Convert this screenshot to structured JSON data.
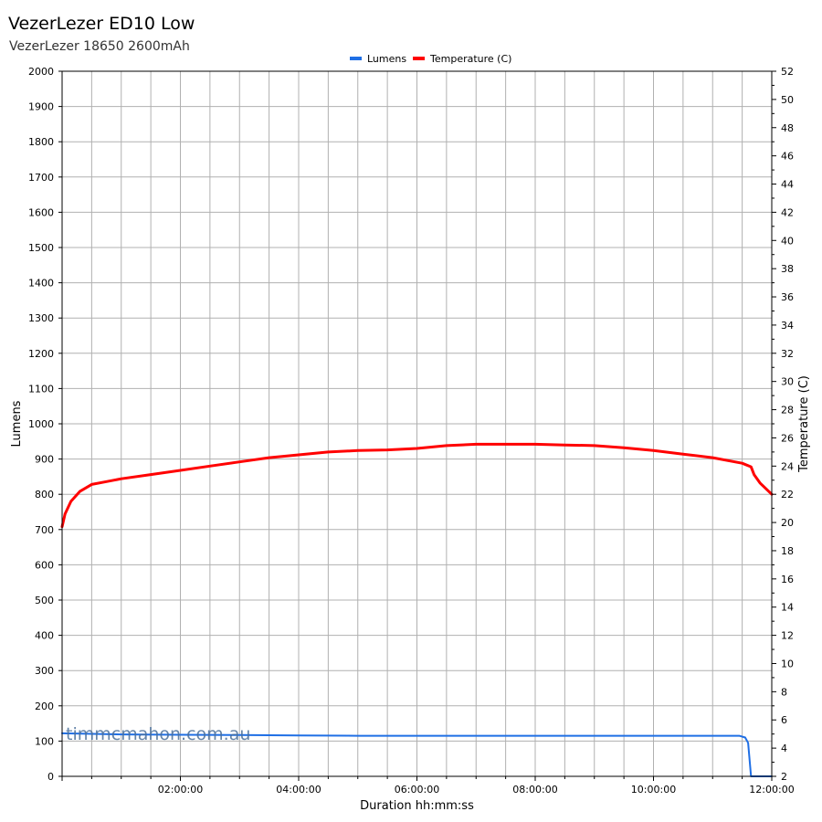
{
  "chart_data": {
    "type": "line",
    "title": "VezerLezer ED10 Low",
    "subtitle": "VezerLezer 18650 2600mAh",
    "xlabel": "Duration hh:mm:ss",
    "ylabel_left": "Lumens",
    "ylabel_right": "Temperature (C)",
    "xlim_hours": [
      0,
      12
    ],
    "ylim_left": [
      0,
      2000
    ],
    "ylim_right": [
      2,
      52
    ],
    "x_tick_labels": [
      "02:00:00",
      "04:00:00",
      "06:00:00",
      "08:00:00",
      "10:00:00",
      "12:00:00"
    ],
    "y_left_ticks": [
      0,
      100,
      200,
      300,
      400,
      500,
      600,
      700,
      800,
      900,
      1000,
      1100,
      1200,
      1300,
      1400,
      1500,
      1600,
      1700,
      1800,
      1900,
      2000
    ],
    "y_right_ticks": [
      2,
      4,
      6,
      8,
      10,
      12,
      14,
      16,
      18,
      20,
      22,
      24,
      26,
      28,
      30,
      32,
      34,
      36,
      38,
      40,
      42,
      44,
      46,
      48,
      50,
      52
    ],
    "grid": true,
    "legend_position": "top-center",
    "series": [
      {
        "name": "Lumens",
        "axis": "left",
        "color": "#1f6fe5",
        "x": [
          0,
          1,
          2,
          3,
          4,
          5,
          6,
          7,
          8,
          9,
          10,
          11,
          11.45,
          11.55,
          11.6,
          11.65,
          12.0
        ],
        "y": [
          122,
          119,
          118,
          117,
          116,
          115,
          115,
          115,
          115,
          115,
          115,
          115,
          115,
          110,
          95,
          0,
          0
        ]
      },
      {
        "name": "Temperature (C)",
        "axis": "right",
        "color": "#ff0000",
        "x": [
          0,
          0.05,
          0.15,
          0.3,
          0.5,
          0.75,
          1,
          1.5,
          2,
          2.5,
          3,
          3.5,
          4,
          4.5,
          5,
          5.5,
          6,
          6.5,
          7,
          7.5,
          8,
          8.5,
          9,
          9.5,
          10,
          10.5,
          11,
          11.5,
          11.65,
          11.7,
          11.8,
          12.0
        ],
        "y": [
          19.7,
          20.6,
          21.5,
          22.2,
          22.7,
          22.9,
          23.1,
          23.4,
          23.7,
          24.0,
          24.3,
          24.6,
          24.8,
          25.0,
          25.1,
          25.15,
          25.25,
          25.45,
          25.55,
          25.55,
          25.55,
          25.5,
          25.45,
          25.3,
          25.1,
          24.85,
          24.6,
          24.2,
          23.95,
          23.4,
          22.8,
          22.0
        ]
      }
    ]
  },
  "watermark": "timmcmahon.com.au"
}
